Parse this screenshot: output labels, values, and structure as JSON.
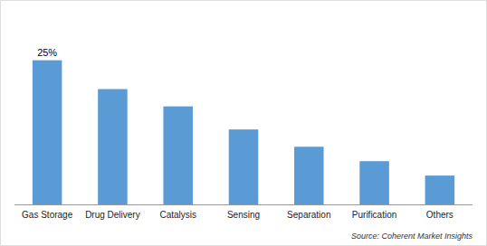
{
  "chart_data": {
    "type": "bar",
    "categories": [
      "Gas Storage",
      "Drug Delivery",
      "Catalysis",
      "Sensing",
      "Separation",
      "Purification",
      "Others"
    ],
    "values": [
      25,
      20,
      17,
      13,
      10,
      7.5,
      5
    ],
    "color": "#5B9BD5",
    "ylim": [
      0,
      32
    ],
    "grid": false,
    "tick_labels": "x",
    "annotations": [
      "25%"
    ],
    "source": "Source: Coherent Market Insights"
  }
}
